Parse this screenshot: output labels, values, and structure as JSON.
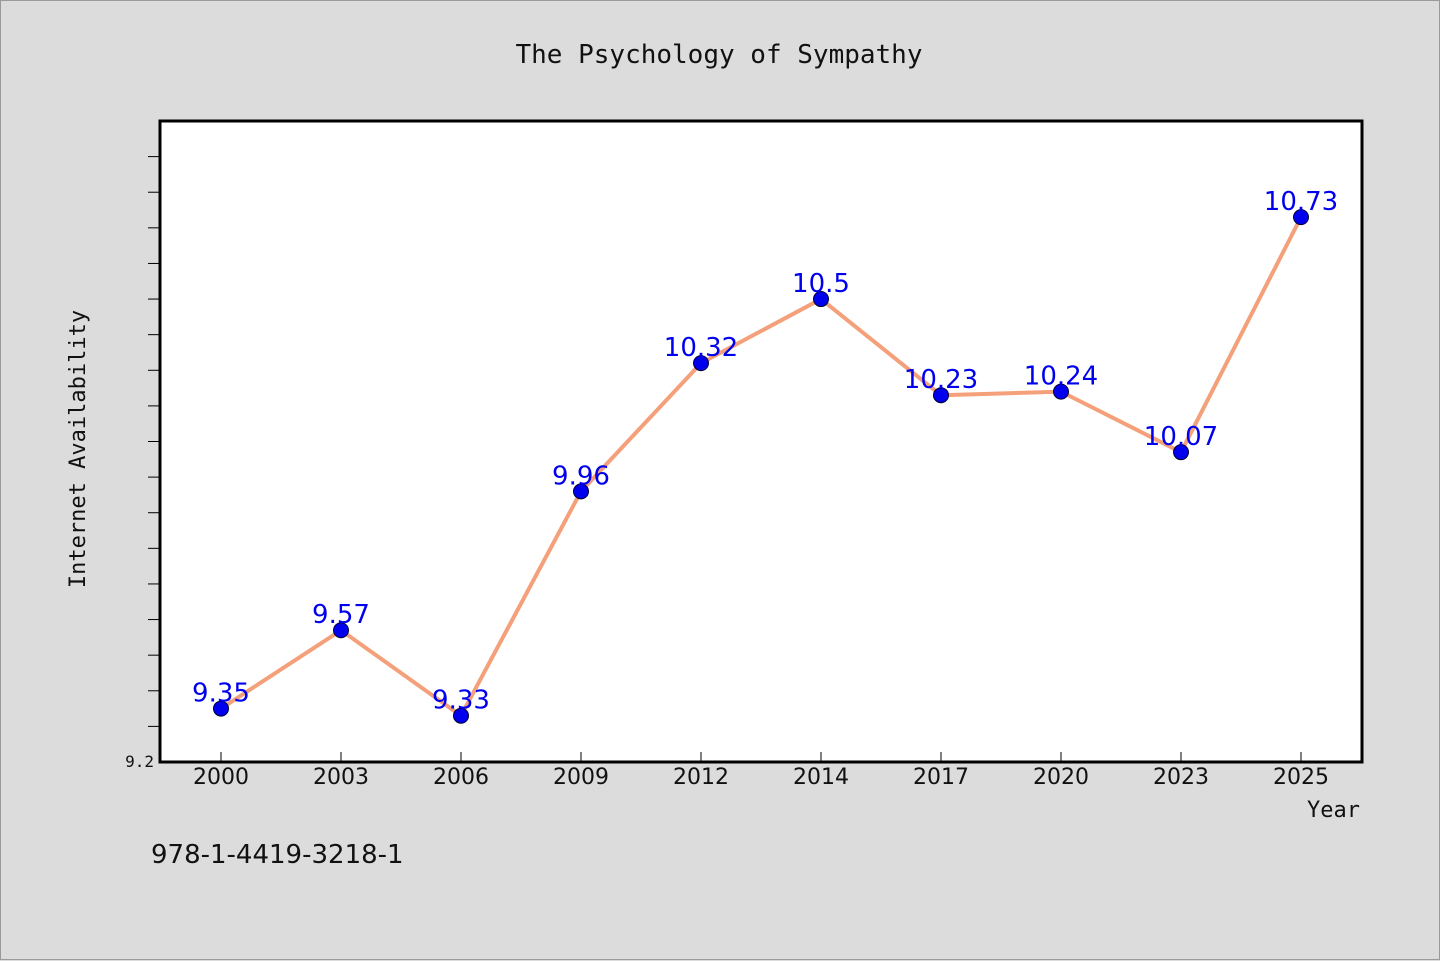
{
  "footer": {
    "isbn": "978-1-4419-3218-1"
  },
  "chart_data": {
    "type": "line",
    "title": "The Psychology of Sympathy",
    "xlabel": "Year",
    "ylabel": "Internet Availability",
    "categories": [
      "2000",
      "2003",
      "2006",
      "2009",
      "2012",
      "2014",
      "2017",
      "2020",
      "2023",
      "2025"
    ],
    "series": [
      {
        "values": [
          9.35,
          9.57,
          9.33,
          9.96,
          10.32,
          10.5,
          10.23,
          10.24,
          10.07,
          10.73
        ],
        "line_color": "#f4a07a",
        "marker_color": "#0000ee"
      }
    ],
    "data_labels": [
      "9.35",
      "9.57",
      "9.33",
      "9.96",
      "10.32",
      "10.5",
      "10.23",
      "10.24",
      "10.07",
      "10.73"
    ],
    "y_tick_labels": [
      "9.2"
    ],
    "ylim": [
      9.2,
      11.0
    ],
    "grid": false,
    "legend": "none",
    "colors": {
      "background": "#dcdcdc",
      "plot_background": "#ffffff",
      "label": "#0000ee"
    }
  }
}
